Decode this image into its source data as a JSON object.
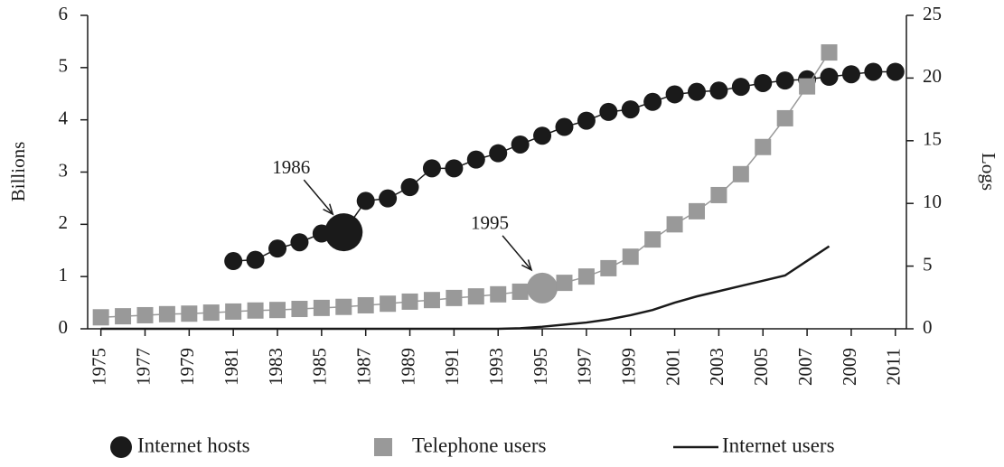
{
  "chart_data": {
    "type": "line",
    "xlim": [
      1974.4,
      2011.5
    ],
    "xticks": [
      1975,
      1977,
      1979,
      1981,
      1983,
      1985,
      1987,
      1989,
      1991,
      1993,
      1995,
      1997,
      1999,
      2001,
      2003,
      2005,
      2007,
      2009,
      2011
    ],
    "ylabel": "Billions",
    "ylim": [
      0,
      6
    ],
    "yticks": [
      0,
      1,
      2,
      3,
      4,
      5,
      6
    ],
    "y2label": "Logs",
    "y2lim": [
      0,
      25
    ],
    "y2ticks": [
      0,
      5,
      10,
      15,
      20,
      25
    ],
    "series": [
      {
        "name": "Internet hosts",
        "color": "#1a1a1a",
        "marker": "circle",
        "axis": "y2",
        "x": [
          1981,
          1982,
          1983,
          1984,
          1985,
          1986,
          1987,
          1988,
          1989,
          1990,
          1991,
          1992,
          1993,
          1994,
          1995,
          1996,
          1997,
          1998,
          1999,
          2000,
          2001,
          2002,
          2003,
          2004,
          2005,
          2006,
          2007,
          2008,
          2009,
          2010,
          2011
        ],
        "values": [
          5.4,
          5.5,
          6.4,
          6.9,
          7.6,
          7.7,
          10.2,
          10.4,
          11.3,
          12.8,
          12.8,
          13.5,
          14.0,
          14.7,
          15.4,
          16.1,
          16.6,
          17.3,
          17.5,
          18.1,
          18.7,
          18.9,
          19.0,
          19.3,
          19.6,
          19.8,
          19.9,
          20.1,
          20.3,
          20.5,
          20.5
        ]
      },
      {
        "name": "Telephone users",
        "color": "#999999",
        "marker": "square",
        "x": [
          1975,
          1976,
          1977,
          1978,
          1979,
          1980,
          1981,
          1982,
          1983,
          1984,
          1985,
          1986,
          1987,
          1988,
          1989,
          1990,
          1991,
          1992,
          1993,
          1994,
          1995,
          1996,
          1997,
          1998,
          1999,
          2000,
          2001,
          2002,
          2003,
          2004,
          2005,
          2006,
          2007,
          2008
        ],
        "values": [
          0.22,
          0.24,
          0.26,
          0.28,
          0.29,
          0.31,
          0.33,
          0.35,
          0.36,
          0.38,
          0.4,
          0.42,
          0.45,
          0.48,
          0.52,
          0.55,
          0.59,
          0.62,
          0.66,
          0.71,
          0.78,
          0.88,
          1.0,
          1.16,
          1.38,
          1.71,
          2.0,
          2.25,
          2.56,
          2.96,
          3.48,
          4.03,
          4.64,
          5.29
        ]
      },
      {
        "name": "Internet users",
        "color": "#1a1a1a",
        "marker": "none",
        "x": [
          1975,
          1980,
          1985,
          1990,
          1993,
          1994,
          1995,
          1996,
          1997,
          1998,
          1999,
          2000,
          2001,
          2002,
          2003,
          2004,
          2005,
          2006,
          2007,
          2008
        ],
        "values": [
          0,
          0,
          0,
          0,
          0,
          0.01,
          0.04,
          0.08,
          0.12,
          0.18,
          0.26,
          0.36,
          0.5,
          0.62,
          0.72,
          0.82,
          0.92,
          1.02,
          1.3,
          1.58
        ]
      }
    ],
    "annotations": [
      {
        "label": "1986",
        "series": 0,
        "x": 1986
      },
      {
        "label": "1995",
        "series": 1,
        "x": 1995
      }
    ]
  }
}
